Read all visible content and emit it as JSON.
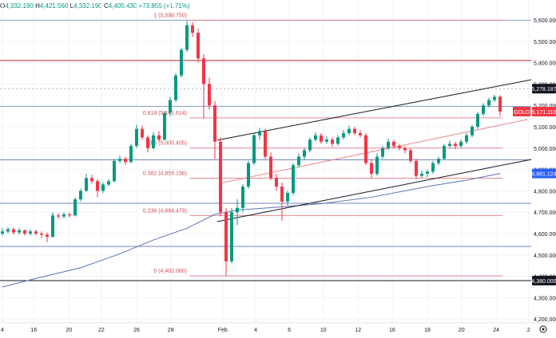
{
  "header": {
    "ohlc": [
      {
        "k": "O",
        "v": "4,332.190"
      },
      {
        "k": "H",
        "v": "4,421.560"
      },
      {
        "k": "L",
        "v": "4,332.190"
      },
      {
        "k": "C",
        "v": "4,405.430"
      }
    ],
    "change": "+73.855 (+1.71%)"
  },
  "chart_data": {
    "type": "candlestick",
    "symbol": "GOLD",
    "ylim": [
      4200,
      5650
    ],
    "y_ticks": [
      "5,600.000",
      "5,500.000",
      "5,400.000",
      "5,300.000",
      "5,200.000",
      "5,100.000",
      "5,000.000",
      "4,900.000",
      "4,800.000",
      "4,700.000",
      "4,600.000",
      "4,500.000",
      "4,400.000",
      "4,300.000",
      "4,200.000"
    ],
    "y_tick_values": [
      5600,
      5500,
      5400,
      5300,
      5200,
      5100,
      5000,
      4900,
      4800,
      4700,
      4600,
      4500,
      4400,
      4300,
      4200
    ],
    "x_ticks": [
      {
        "label": "4",
        "candle": 0
      },
      {
        "label": "16",
        "candle": 5.6
      },
      {
        "label": "20",
        "candle": 11.9
      },
      {
        "label": "22",
        "candle": 17.7
      },
      {
        "label": "26",
        "candle": 24
      },
      {
        "label": "28",
        "candle": 30.1
      },
      {
        "label": "Feb",
        "candle": 39.4
      },
      {
        "label": "4",
        "candle": 45.3
      },
      {
        "label": "6",
        "candle": 51.3
      },
      {
        "label": "10",
        "candle": 57.4
      },
      {
        "label": "12",
        "candle": 63.6
      },
      {
        "label": "16",
        "candle": 69.7
      },
      {
        "label": "18",
        "candle": 76
      },
      {
        "label": "20",
        "candle": 82.1
      },
      {
        "label": "24",
        "candle": 88.3
      },
      {
        "label": "2",
        "candle": 94.1
      }
    ],
    "candles": [
      [
        4600,
        4625,
        4590,
        4610
      ],
      [
        4610,
        4630,
        4600,
        4620
      ],
      [
        4620,
        4628,
        4595,
        4605
      ],
      [
        4605,
        4625,
        4595,
        4615
      ],
      [
        4615,
        4620,
        4590,
        4600
      ],
      [
        4600,
        4620,
        4590,
        4610
      ],
      [
        4610,
        4618,
        4590,
        4600
      ],
      [
        4600,
        4610,
        4580,
        4595
      ],
      [
        4595,
        4605,
        4560,
        4585
      ],
      [
        4585,
        4700,
        4580,
        4685
      ],
      [
        4685,
        4695,
        4670,
        4680
      ],
      [
        4680,
        4700,
        4672,
        4690
      ],
      [
        4690,
        4698,
        4675,
        4685
      ],
      [
        4685,
        4770,
        4680,
        4760
      ],
      [
        4760,
        4810,
        4750,
        4800
      ],
      [
        4800,
        4880,
        4795,
        4860
      ],
      [
        4860,
        4875,
        4835,
        4845
      ],
      [
        4845,
        4855,
        4770,
        4800
      ],
      [
        4800,
        4840,
        4790,
        4830
      ],
      [
        4830,
        4855,
        4820,
        4845
      ],
      [
        4845,
        4950,
        4840,
        4940
      ],
      [
        4940,
        4965,
        4930,
        4950
      ],
      [
        4950,
        4960,
        4920,
        4935
      ],
      [
        4935,
        5020,
        4930,
        5010
      ],
      [
        5010,
        5110,
        5000,
        5090
      ],
      [
        5090,
        5105,
        5040,
        5050
      ],
      [
        5050,
        5060,
        4980,
        5000
      ],
      [
        5000,
        5075,
        4995,
        5060
      ],
      [
        5060,
        5080,
        5030,
        5040
      ],
      [
        5040,
        5175,
        5035,
        5165
      ],
      [
        5165,
        5240,
        5150,
        5225
      ],
      [
        5225,
        5350,
        5215,
        5340
      ],
      [
        5340,
        5470,
        5330,
        5460
      ],
      [
        5460,
        5598,
        5450,
        5575
      ],
      [
        5575,
        5590,
        5520,
        5540
      ],
      [
        5540,
        5560,
        5400,
        5420
      ],
      [
        5420,
        5440,
        5140,
        5300
      ],
      [
        5300,
        5330,
        5180,
        5200
      ],
      [
        5200,
        5220,
        4950,
        5030
      ],
      [
        5030,
        5050,
        4680,
        4700
      ],
      [
        4700,
        4720,
        4402,
        4470
      ],
      [
        4470,
        4720,
        4460,
        4700
      ],
      [
        4700,
        4760,
        4640,
        4720
      ],
      [
        4720,
        4830,
        4700,
        4820
      ],
      [
        4820,
        4940,
        4810,
        4930
      ],
      [
        4930,
        5070,
        4920,
        5060
      ],
      [
        5060,
        5095,
        5040,
        5080
      ],
      [
        5080,
        5090,
        4950,
        4960
      ],
      [
        4960,
        4980,
        4850,
        4860
      ],
      [
        4860,
        4880,
        4800,
        4820
      ],
      [
        4820,
        4840,
        4660,
        4750
      ],
      [
        4750,
        4800,
        4730,
        4790
      ],
      [
        4790,
        4930,
        4780,
        4920
      ],
      [
        4920,
        4975,
        4910,
        4960
      ],
      [
        4960,
        5000,
        4945,
        4990
      ],
      [
        4990,
        5050,
        4980,
        5040
      ],
      [
        5040,
        5075,
        5030,
        5060
      ],
      [
        5060,
        5070,
        5020,
        5030
      ],
      [
        5030,
        5055,
        5020,
        5040
      ],
      [
        5040,
        5050,
        5005,
        5020
      ],
      [
        5020,
        5060,
        5010,
        5050
      ],
      [
        5050,
        5085,
        5040,
        5070
      ],
      [
        5070,
        5105,
        5060,
        5090
      ],
      [
        5090,
        5100,
        5060,
        5070
      ],
      [
        5070,
        5085,
        5050,
        5060
      ],
      [
        5060,
        5070,
        4920,
        4930
      ],
      [
        4930,
        4950,
        4860,
        4880
      ],
      [
        4880,
        4975,
        4870,
        4960
      ],
      [
        4960,
        5010,
        4950,
        5000
      ],
      [
        5000,
        5045,
        4990,
        5030
      ],
      [
        5030,
        5040,
        5000,
        5010
      ],
      [
        5010,
        5020,
        4990,
        5000
      ],
      [
        5000,
        5010,
        4975,
        4990
      ],
      [
        4990,
        5000,
        4930,
        4940
      ],
      [
        4940,
        4950,
        4855,
        4870
      ],
      [
        4870,
        4895,
        4860,
        4880
      ],
      [
        4880,
        4900,
        4865,
        4890
      ],
      [
        4890,
        4940,
        4880,
        4930
      ],
      [
        4930,
        4960,
        4920,
        4950
      ],
      [
        4950,
        5020,
        4945,
        5010
      ],
      [
        5010,
        5035,
        5000,
        5020
      ],
      [
        5020,
        5030,
        4995,
        5010
      ],
      [
        5010,
        5040,
        5000,
        5030
      ],
      [
        5030,
        5070,
        5020,
        5060
      ],
      [
        5060,
        5110,
        5050,
        5100
      ],
      [
        5100,
        5170,
        5090,
        5160
      ],
      [
        5160,
        5210,
        5150,
        5200
      ],
      [
        5200,
        5235,
        5190,
        5225
      ],
      [
        5225,
        5250,
        5215,
        5240
      ],
      [
        5240,
        5248,
        5150,
        5171
      ]
    ],
    "moving_average": [
      [
        0,
        4350
      ],
      [
        6,
        4390
      ],
      [
        14,
        4440
      ],
      [
        21,
        4505
      ],
      [
        27,
        4570
      ],
      [
        33,
        4625
      ],
      [
        38,
        4690
      ],
      [
        42,
        4710
      ],
      [
        50,
        4725
      ],
      [
        57,
        4740
      ],
      [
        66,
        4770
      ],
      [
        76,
        4820
      ],
      [
        83,
        4850
      ],
      [
        89,
        4881.124
      ]
    ],
    "fibonacci": [
      {
        "label": "1 (5,598.750)",
        "value": 5598.75
      },
      {
        "label": "0.618 (5,141.614)",
        "value": 5141.614
      },
      {
        "label": "0.5 (5,000.405)",
        "value": 5000.405
      },
      {
        "label": "0.382 (4,859.196)",
        "value": 4859.196
      },
      {
        "label": "0.236 (4,684.479)",
        "value": 4684.479
      },
      {
        "label": "0 (4,402.060)",
        "value": 4402.06
      }
    ],
    "horizontal_lines": [
      {
        "value": 5598.75,
        "color": "#8fa3c7"
      },
      {
        "value": 5410,
        "color": "#b22833"
      },
      {
        "value": 5195,
        "color": "#8fa3c7"
      },
      {
        "value": 4945,
        "color": "#7186c0"
      },
      {
        "value": 4742,
        "color": "#7186c0"
      },
      {
        "value": 4540,
        "color": "#7186c0"
      },
      {
        "value": 4380,
        "color": "#131722"
      }
    ],
    "dotted_line": 5278.187,
    "trendlines": [
      {
        "from": [
          38.4,
          5037
        ],
        "to": [
          94.6,
          5320
        ],
        "color": "#131722"
      },
      {
        "from": [
          38.4,
          4656
        ],
        "to": [
          94.6,
          4947
        ],
        "color": "#131722"
      },
      {
        "from": [
          38.8,
          4835
        ],
        "to": [
          93.9,
          5134
        ],
        "color": "#e8878f"
      }
    ],
    "price_labels": [
      {
        "text": "5,278.187",
        "value": 5278.187,
        "bg": "#131722"
      },
      {
        "text": "5,171.110",
        "value": 5171.11,
        "bg": "#f23645",
        "tag": "GOLD"
      },
      {
        "text": "4,881.124",
        "value": 4881.124,
        "bg": "#2962ff"
      },
      {
        "text": "4,380.000",
        "value": 4380,
        "bg": "#131722"
      }
    ],
    "colors": {
      "up": "#089981",
      "down": "#f23645",
      "ma": "#5b73b8",
      "fib": "#e58a92",
      "fib_text": "#d0515d"
    }
  }
}
